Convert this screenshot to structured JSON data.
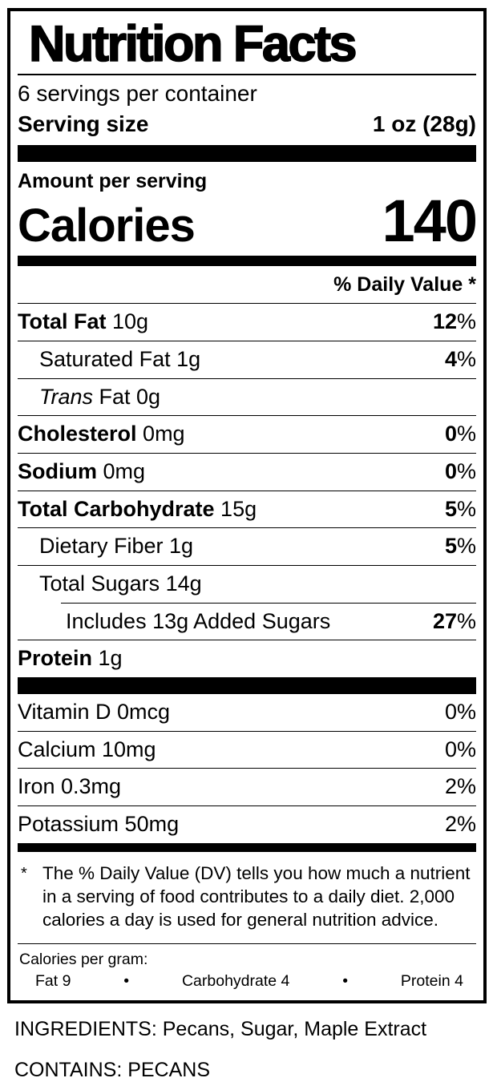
{
  "label": {
    "title": "Nutrition Facts",
    "servings_per_container": "6 servings per container",
    "serving_size": {
      "label": "Serving size",
      "value": "1 oz (28g)"
    },
    "amount_per_serving": "Amount per serving",
    "calories": {
      "label": "Calories",
      "value": "140"
    },
    "daily_value_header": "% Daily Value *",
    "percent_sign": "%",
    "nutrients": [
      {
        "name": "Total Fat",
        "amount": "10g",
        "dv": "12"
      },
      {
        "name": "Saturated Fat 1g",
        "dv": "4"
      },
      {
        "name": "Trans",
        "amount": "Fat 0g",
        "dv": ""
      },
      {
        "name": "Cholesterol",
        "amount": "0mg",
        "dv": "0"
      },
      {
        "name": "Sodium",
        "amount": "0mg",
        "dv": "0"
      },
      {
        "name": "Total Carbohydrate",
        "amount": "15g",
        "dv": "5"
      },
      {
        "name": "Dietary Fiber 1g",
        "dv": "5"
      },
      {
        "name": "Total Sugars 14g",
        "dv": ""
      },
      {
        "name": "Includes 13g Added Sugars",
        "dv": "27"
      },
      {
        "name": "Protein",
        "amount": "1g",
        "dv": ""
      }
    ],
    "vitamins": [
      {
        "name": "Vitamin D 0mcg",
        "dv": "0"
      },
      {
        "name": "Calcium 10mg",
        "dv": "0"
      },
      {
        "name": "Iron 0.3mg",
        "dv": "2"
      },
      {
        "name": "Potassium 50mg",
        "dv": "2"
      }
    ],
    "footnote_marker": "*",
    "footnote_text": "The % Daily Value (DV) tells you how much a nutrient in a serving of food contributes to a daily diet. 2,000 calories a day is used for general nutrition advice.",
    "calories_per_gram": {
      "label": "Calories per gram:",
      "bullet": "•",
      "fat": "Fat 9",
      "carbohydrate": "Carbohydrate 4",
      "protein": "Protein 4"
    }
  },
  "ingredients_line": "INGREDIENTS: Pecans, Sugar, Maple Extract",
  "contains_line": "CONTAINS: PECANS"
}
